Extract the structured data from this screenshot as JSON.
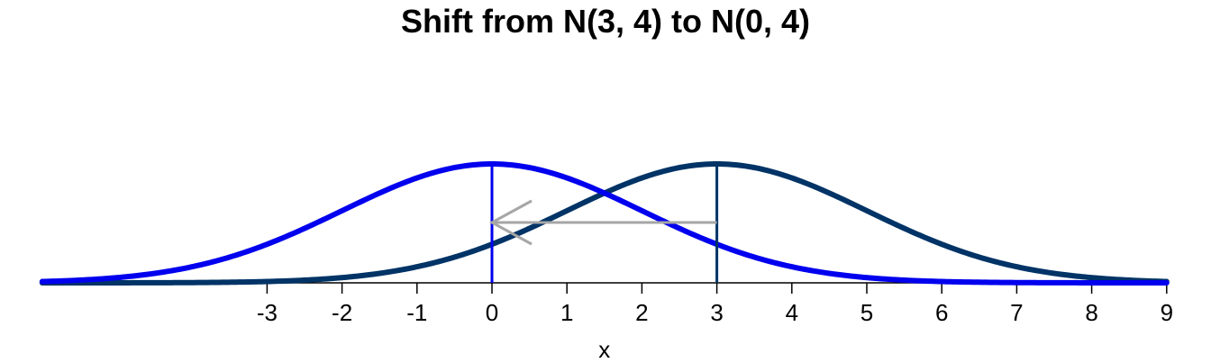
{
  "chart_data": {
    "type": "line",
    "title": "Shift from N(3, 4) to N(0, 4)",
    "xlabel": "x",
    "ylabel": "",
    "xlim": [
      -6,
      9
    ],
    "ylim": [
      0,
      0.2
    ],
    "x_ticks": [
      -3,
      -2,
      -1,
      0,
      1,
      2,
      3,
      4,
      5,
      6,
      7,
      8,
      9
    ],
    "x_tick_labels": [
      "-3",
      "-2",
      "-1",
      "0",
      "1",
      "2",
      "3",
      "4",
      "5",
      "6",
      "7",
      "8",
      "9"
    ],
    "grid": false,
    "legend": "none",
    "series": [
      {
        "mean": 3,
        "variance": 4,
        "color": "#003366"
      },
      {
        "mean": 0,
        "variance": 4,
        "color": "#0000ee"
      }
    ],
    "mean_markers": [
      {
        "x": 3,
        "color": "#003366"
      },
      {
        "x": 0,
        "color": "#0000ee"
      }
    ],
    "arrow": {
      "from_x": 3,
      "to_x": 0,
      "color": "#a6a6a6"
    }
  }
}
